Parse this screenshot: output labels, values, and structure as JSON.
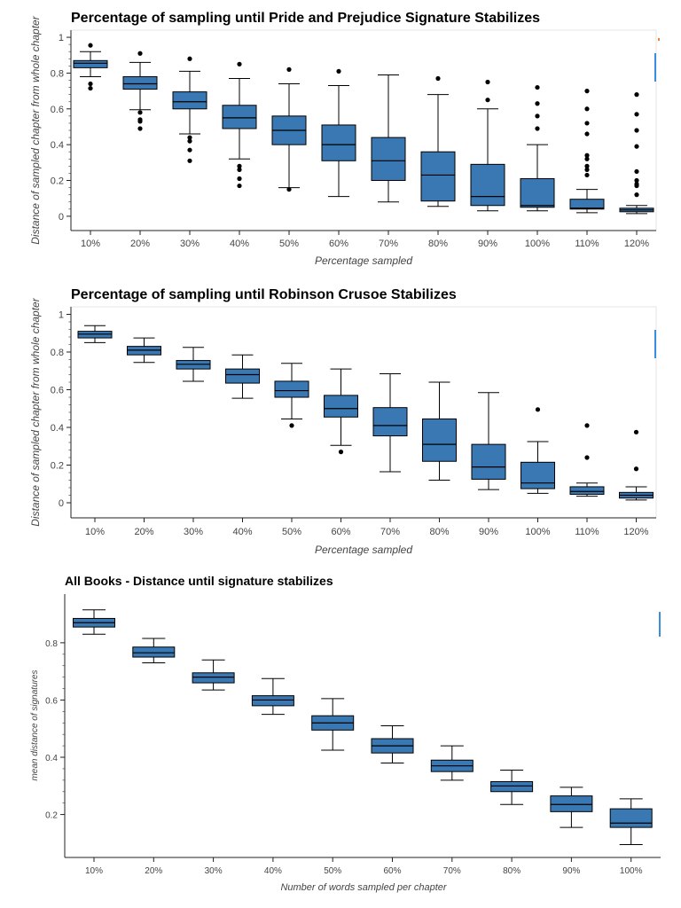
{
  "colors": {
    "box_fill": "#3a78b4",
    "box_stroke": "#000000",
    "whisker": "#000000",
    "outlier": "#000000",
    "frame": "#e5e5e5",
    "accent": "#3b8ede"
  },
  "chart_data": [
    {
      "type": "box",
      "title": "Percentage of sampling until Pride and Prejudice Signature Stabilizes",
      "xlabel": "Percentage sampled",
      "ylabel": "Distance of sampled chapter from whole chapter",
      "ylim": [
        -0.08,
        1.04
      ],
      "yticks": [
        0,
        0.2,
        0.4,
        0.6,
        0.8,
        1
      ],
      "ytick_labels": [
        "0",
        "0.2",
        "0.4",
        "0.6",
        "0.8",
        "1"
      ],
      "categories": [
        "10%",
        "20%",
        "30%",
        "40%",
        "50%",
        "60%",
        "70%",
        "80%",
        "90%",
        "100%",
        "110%",
        "120%"
      ],
      "boxes": [
        {
          "lo": 0.78,
          "q1": 0.83,
          "med": 0.855,
          "q3": 0.87,
          "hi": 0.92,
          "outliers": [
            0.955,
            0.74,
            0.715
          ]
        },
        {
          "lo": 0.595,
          "q1": 0.71,
          "med": 0.74,
          "q3": 0.78,
          "hi": 0.86,
          "outliers": [
            0.91,
            0.58,
            0.54,
            0.53,
            0.49
          ]
        },
        {
          "lo": 0.46,
          "q1": 0.6,
          "med": 0.64,
          "q3": 0.695,
          "hi": 0.81,
          "outliers": [
            0.88,
            0.44,
            0.42,
            0.37,
            0.31
          ]
        },
        {
          "lo": 0.32,
          "q1": 0.49,
          "med": 0.55,
          "q3": 0.62,
          "hi": 0.77,
          "outliers": [
            0.85,
            0.28,
            0.26,
            0.21,
            0.17
          ]
        },
        {
          "lo": 0.16,
          "q1": 0.4,
          "med": 0.48,
          "q3": 0.56,
          "hi": 0.74,
          "outliers": [
            0.82,
            0.15
          ]
        },
        {
          "lo": 0.11,
          "q1": 0.31,
          "med": 0.4,
          "q3": 0.51,
          "hi": 0.73,
          "outliers": [
            0.81
          ]
        },
        {
          "lo": 0.08,
          "q1": 0.2,
          "med": 0.31,
          "q3": 0.44,
          "hi": 0.79,
          "outliers": []
        },
        {
          "lo": 0.055,
          "q1": 0.085,
          "med": 0.23,
          "q3": 0.36,
          "hi": 0.68,
          "outliers": [
            0.77
          ]
        },
        {
          "lo": 0.03,
          "q1": 0.06,
          "med": 0.11,
          "q3": 0.29,
          "hi": 0.6,
          "outliers": [
            0.75,
            0.65
          ]
        },
        {
          "lo": 0.03,
          "q1": 0.05,
          "med": 0.06,
          "q3": 0.21,
          "hi": 0.4,
          "outliers": [
            0.72,
            0.63,
            0.56,
            0.49
          ]
        },
        {
          "lo": 0.02,
          "q1": 0.04,
          "med": 0.045,
          "q3": 0.095,
          "hi": 0.15,
          "outliers": [
            0.7,
            0.6,
            0.52,
            0.46,
            0.34,
            0.32,
            0.28,
            0.26,
            0.23
          ]
        },
        {
          "lo": 0.015,
          "q1": 0.025,
          "med": 0.035,
          "q3": 0.045,
          "hi": 0.06,
          "outliers": [
            0.68,
            0.57,
            0.48,
            0.39,
            0.25,
            0.2,
            0.18,
            0.17,
            0.12
          ]
        }
      ]
    },
    {
      "type": "box",
      "title": "Percentage of sampling until Robinson Crusoe Stabilizes",
      "xlabel": "Percentage sampled",
      "ylabel": "Distance of sampled chapter from whole chapter",
      "ylim": [
        -0.08,
        1.04
      ],
      "yticks": [
        0,
        0.2,
        0.4,
        0.6,
        0.8,
        1
      ],
      "ytick_labels": [
        "0",
        "0.2",
        "0.4",
        "0.6",
        "0.8",
        "1"
      ],
      "categories": [
        "10%",
        "20%",
        "30%",
        "40%",
        "50%",
        "60%",
        "70%",
        "80%",
        "90%",
        "100%",
        "110%",
        "120%"
      ],
      "boxes": [
        {
          "lo": 0.85,
          "q1": 0.875,
          "med": 0.895,
          "q3": 0.91,
          "hi": 0.94,
          "outliers": []
        },
        {
          "lo": 0.745,
          "q1": 0.785,
          "med": 0.81,
          "q3": 0.83,
          "hi": 0.875,
          "outliers": []
        },
        {
          "lo": 0.645,
          "q1": 0.71,
          "med": 0.735,
          "q3": 0.755,
          "hi": 0.825,
          "outliers": []
        },
        {
          "lo": 0.555,
          "q1": 0.635,
          "med": 0.68,
          "q3": 0.71,
          "hi": 0.785,
          "outliers": []
        },
        {
          "lo": 0.445,
          "q1": 0.56,
          "med": 0.595,
          "q3": 0.645,
          "hi": 0.74,
          "outliers": [
            0.41
          ]
        },
        {
          "lo": 0.305,
          "q1": 0.455,
          "med": 0.5,
          "q3": 0.57,
          "hi": 0.71,
          "outliers": [
            0.27
          ]
        },
        {
          "lo": 0.165,
          "q1": 0.355,
          "med": 0.41,
          "q3": 0.505,
          "hi": 0.685,
          "outliers": []
        },
        {
          "lo": 0.12,
          "q1": 0.22,
          "med": 0.31,
          "q3": 0.445,
          "hi": 0.64,
          "outliers": []
        },
        {
          "lo": 0.07,
          "q1": 0.125,
          "med": 0.19,
          "q3": 0.31,
          "hi": 0.585,
          "outliers": []
        },
        {
          "lo": 0.05,
          "q1": 0.075,
          "med": 0.105,
          "q3": 0.215,
          "hi": 0.325,
          "outliers": [
            0.495
          ]
        },
        {
          "lo": 0.035,
          "q1": 0.045,
          "med": 0.06,
          "q3": 0.085,
          "hi": 0.105,
          "outliers": [
            0.41,
            0.24
          ]
        },
        {
          "lo": 0.015,
          "q1": 0.025,
          "med": 0.04,
          "q3": 0.055,
          "hi": 0.085,
          "outliers": [
            0.375,
            0.18
          ]
        }
      ]
    },
    {
      "type": "box",
      "title": "All Books - Distance until signature stabilizes",
      "xlabel": "Number of words sampled per chapter",
      "ylabel": "mean distance of signatures",
      "ylim": [
        0.05,
        0.97
      ],
      "yticks": [
        0.2,
        0.4,
        0.6,
        0.8
      ],
      "ytick_labels": [
        "0.2",
        "0.4",
        "0.6",
        "0.8"
      ],
      "categories": [
        "10%",
        "20%",
        "30%",
        "40%",
        "50%",
        "60%",
        "70%",
        "80%",
        "90%",
        "100%"
      ],
      "boxes": [
        {
          "lo": 0.83,
          "q1": 0.855,
          "med": 0.87,
          "q3": 0.885,
          "hi": 0.915,
          "outliers": []
        },
        {
          "lo": 0.73,
          "q1": 0.75,
          "med": 0.765,
          "q3": 0.785,
          "hi": 0.815,
          "outliers": []
        },
        {
          "lo": 0.635,
          "q1": 0.66,
          "med": 0.68,
          "q3": 0.695,
          "hi": 0.74,
          "outliers": []
        },
        {
          "lo": 0.55,
          "q1": 0.58,
          "med": 0.6,
          "q3": 0.615,
          "hi": 0.675,
          "outliers": []
        },
        {
          "lo": 0.425,
          "q1": 0.495,
          "med": 0.52,
          "q3": 0.545,
          "hi": 0.605,
          "outliers": []
        },
        {
          "lo": 0.38,
          "q1": 0.415,
          "med": 0.44,
          "q3": 0.465,
          "hi": 0.51,
          "outliers": []
        },
        {
          "lo": 0.32,
          "q1": 0.35,
          "med": 0.37,
          "q3": 0.39,
          "hi": 0.44,
          "outliers": []
        },
        {
          "lo": 0.235,
          "q1": 0.28,
          "med": 0.3,
          "q3": 0.315,
          "hi": 0.355,
          "outliers": []
        },
        {
          "lo": 0.155,
          "q1": 0.21,
          "med": 0.235,
          "q3": 0.265,
          "hi": 0.295,
          "outliers": []
        },
        {
          "lo": 0.095,
          "q1": 0.155,
          "med": 0.17,
          "q3": 0.22,
          "hi": 0.255,
          "outliers": []
        }
      ]
    }
  ]
}
